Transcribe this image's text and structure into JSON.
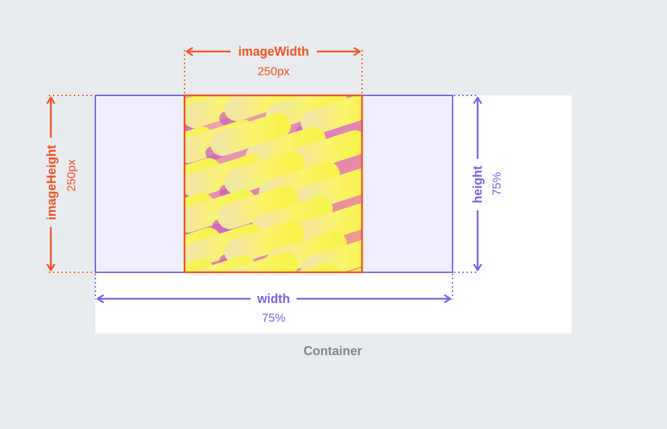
{
  "diagram": {
    "image_width": {
      "label": "imageWidth",
      "value": "250px"
    },
    "image_height": {
      "label": "imageHeight",
      "value": "250px"
    },
    "width": {
      "label": "width",
      "value": "75%"
    },
    "height": {
      "label": "height",
      "value": "75%"
    },
    "container_label": "Container",
    "colors": {
      "image_accent": "#f2521c",
      "box_accent": "#7462e8",
      "container_bg": "#ffffff",
      "box_fill": "#f1efff",
      "page_bg": "#e9ecef",
      "container_text": "#7b8688"
    }
  }
}
